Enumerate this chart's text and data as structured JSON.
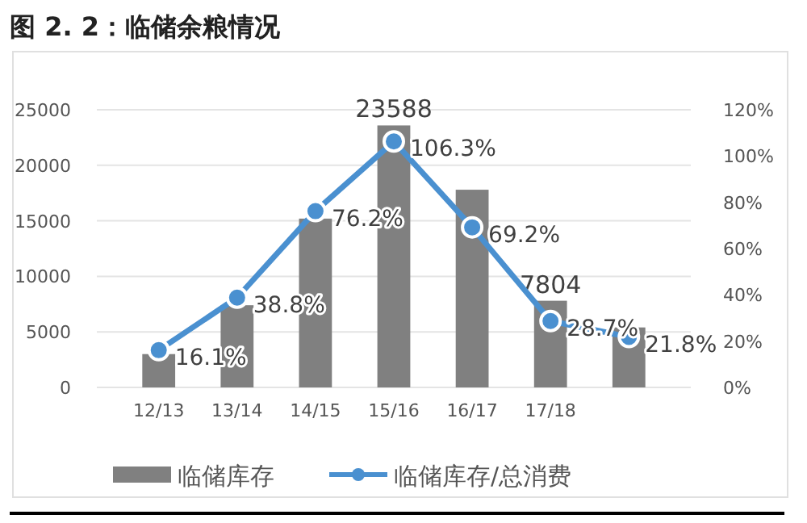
{
  "chart_data": {
    "type": "bar",
    "title": "图 2. 2：临储余粮情况",
    "categories": [
      "12/13",
      "13/14",
      "14/15",
      "15/16",
      "16/17",
      "17/18",
      null
    ],
    "series": [
      {
        "name": "临储库存",
        "color": "#808080",
        "values": [
          3000,
          7400,
          15200,
          23588,
          17800,
          7804,
          5400
        ],
        "value_labels": [
          null,
          null,
          null,
          "23588",
          null,
          "7804",
          null
        ]
      },
      {
        "name": "临储库存/总消费",
        "type": "line",
        "axis": "y2",
        "color": "#4a90d0",
        "values": [
          16.1,
          38.8,
          76.2,
          106.3,
          69.2,
          28.7,
          21.8
        ],
        "value_labels": [
          "16.1%",
          "38.8%",
          "76.2%",
          "106.3%",
          "69.2%",
          "28.7%",
          "21.8%"
        ]
      }
    ],
    "ylim": [
      0,
      25000
    ],
    "yticks": [
      0,
      5000,
      10000,
      15000,
      20000,
      25000
    ],
    "y2lim": [
      0,
      120
    ],
    "y2ticks": [
      {
        "value": 0,
        "label": "0%"
      },
      {
        "value": 20,
        "label": "20%"
      },
      {
        "value": 40,
        "label": "40%"
      },
      {
        "value": 60,
        "label": "60%"
      },
      {
        "value": 80,
        "label": "80%"
      },
      {
        "value": 100,
        "label": "100%"
      },
      {
        "value": 120,
        "label": "120%"
      }
    ],
    "grid": "y",
    "legend": "bottom",
    "marker": "circle",
    "line_style": "solid"
  }
}
